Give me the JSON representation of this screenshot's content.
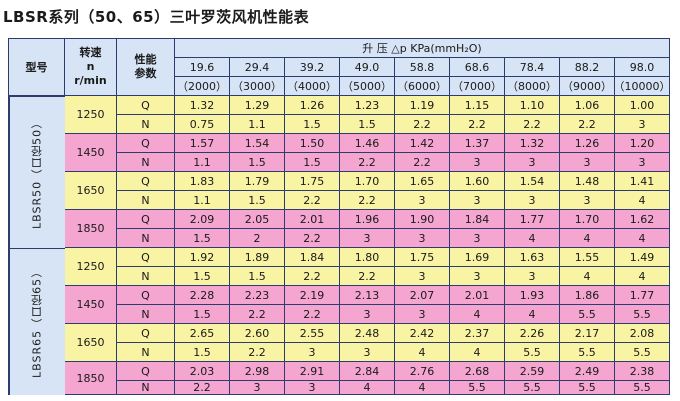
{
  "title": "LBSR系列（50、65）三叶罗茨风机性能表",
  "header": {
    "model_label": "型号",
    "speed_label": "转速",
    "speed_n": "n",
    "speed_unit": "r/min",
    "perf_label": "性能",
    "perf_label2": "参数",
    "pressure_label": "升 压 △p  KPa(mmH₂O)",
    "pressures": [
      {
        "kpa": "19.6",
        "mmh2o": "（2000）"
      },
      {
        "kpa": "29.4",
        "mmh2o": "（3000）"
      },
      {
        "kpa": "39.2",
        "mmh2o": "（4000）"
      },
      {
        "kpa": "49.0",
        "mmh2o": "（5000）"
      },
      {
        "kpa": "58.8",
        "mmh2o": "（6000）"
      },
      {
        "kpa": "68.6",
        "mmh2o": "（7000）"
      },
      {
        "kpa": "78.4",
        "mmh2o": "（8000）"
      },
      {
        "kpa": "88.2",
        "mmh2o": "（9000）"
      },
      {
        "kpa": "98.0",
        "mmh2o": "（10000）"
      }
    ]
  },
  "models": [
    {
      "name": "LBSR50（口径50）",
      "speeds": [
        {
          "speed": "1250",
          "color": "#f9f3a4",
          "rows": [
            {
              "param": "Q",
              "values": [
                "1.32",
                "1.29",
                "1.26",
                "1.23",
                "1.19",
                "1.15",
                "1.10",
                "1.06",
                "1.00"
              ]
            },
            {
              "param": "N",
              "values": [
                "0.75",
                "1.1",
                "1.5",
                "1.5",
                "2.2",
                "2.2",
                "2.2",
                "2.2",
                "3"
              ]
            }
          ]
        },
        {
          "speed": "1450",
          "color": "#f4a5d0",
          "rows": [
            {
              "param": "Q",
              "values": [
                "1.57",
                "1.54",
                "1.50",
                "1.46",
                "1.42",
                "1.37",
                "1.32",
                "1.26",
                "1.20"
              ]
            },
            {
              "param": "N",
              "values": [
                "1.1",
                "1.5",
                "1.5",
                "2.2",
                "2.2",
                "3",
                "3",
                "3",
                "3"
              ]
            }
          ]
        },
        {
          "speed": "1650",
          "color": "#f9f3a4",
          "rows": [
            {
              "param": "Q",
              "values": [
                "1.83",
                "1.79",
                "1.75",
                "1.70",
                "1.65",
                "1.60",
                "1.54",
                "1.48",
                "1.41"
              ]
            },
            {
              "param": "N",
              "values": [
                "1.1",
                "1.5",
                "2.2",
                "2.2",
                "3",
                "3",
                "3",
                "3",
                "4"
              ]
            }
          ]
        },
        {
          "speed": "1850",
          "color": "#f4a5d0",
          "rows": [
            {
              "param": "Q",
              "values": [
                "2.09",
                "2.05",
                "2.01",
                "1.96",
                "1.90",
                "1.84",
                "1.77",
                "1.70",
                "1.62"
              ]
            },
            {
              "param": "N",
              "values": [
                "1.5",
                "2",
                "2.2",
                "3",
                "3",
                "3",
                "4",
                "4",
                "4"
              ]
            }
          ]
        }
      ]
    },
    {
      "name": "LBSR65（口径65）",
      "speeds": [
        {
          "speed": "1250",
          "color": "#f9f3a4",
          "rows": [
            {
              "param": "Q",
              "values": [
                "1.92",
                "1.89",
                "1.84",
                "1.80",
                "1.75",
                "1.69",
                "1.63",
                "1.55",
                "1.49"
              ]
            },
            {
              "param": "N",
              "values": [
                "1.5",
                "1.5",
                "2.2",
                "2.2",
                "3",
                "3",
                "3",
                "4",
                "4"
              ]
            }
          ]
        },
        {
          "speed": "1450",
          "color": "#f4a5d0",
          "rows": [
            {
              "param": "Q",
              "values": [
                "2.28",
                "2.23",
                "2.19",
                "2.13",
                "2.07",
                "2.01",
                "1.93",
                "1.86",
                "1.77"
              ]
            },
            {
              "param": "N",
              "values": [
                "1.5",
                "2.2",
                "2.2",
                "3",
                "3",
                "4",
                "4",
                "5.5",
                "5.5"
              ]
            }
          ]
        },
        {
          "speed": "1650",
          "color": "#f9f3a4",
          "rows": [
            {
              "param": "Q",
              "values": [
                "2.65",
                "2.60",
                "2.55",
                "2.48",
                "2.42",
                "2.37",
                "2.26",
                "2.17",
                "2.08"
              ]
            },
            {
              "param": "N",
              "values": [
                "1.5",
                "2.2",
                "3",
                "3",
                "4",
                "4",
                "5.5",
                "5.5",
                "5.5"
              ]
            }
          ]
        },
        {
          "speed": "1850",
          "color": "#f4a5d0",
          "rows": [
            {
              "param": "Q",
              "values": [
                "2.03",
                "2.98",
                "2.91",
                "2.84",
                "2.76",
                "2.68",
                "2.59",
                "2.49",
                "2.38"
              ]
            },
            {
              "param": "N",
              "values": [
                "2.2",
                "3",
                "3",
                "4",
                "4",
                "5.5",
                "5.5",
                "5.5",
                "5.5"
              ]
            }
          ]
        }
      ]
    }
  ]
}
